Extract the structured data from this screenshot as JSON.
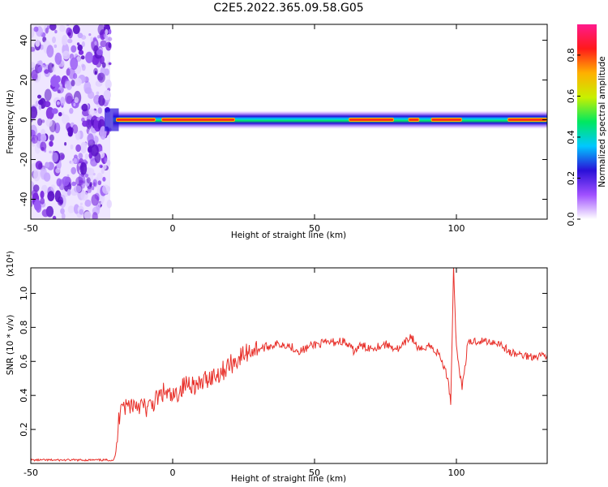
{
  "title": "C2E5.2022.365.09.58.G05",
  "colors": {
    "snr_line": "#e8302a",
    "frame": "#000000"
  },
  "chart_data": [
    {
      "type": "heatmap",
      "xlabel": "Height of straight line (km)",
      "ylabel": "Frequency (Hz)",
      "xlim": [
        -50,
        132
      ],
      "ylim": [
        -50,
        48
      ],
      "xticks": [
        "-50",
        "0",
        "50",
        "100"
      ],
      "yticks": [
        "40",
        "20",
        "0",
        "-20",
        "-40"
      ],
      "colorbar": {
        "label": "Normalized spectral amplitude",
        "range": [
          0,
          0.95
        ],
        "ticks": [
          "0.0",
          "0.2",
          "0.4",
          "0.6",
          "0.8"
        ],
        "stops": [
          "#ffffff",
          "#a050ff",
          "#2a10d8",
          "#00c8ff",
          "#00e860",
          "#c8f000",
          "#ffb000",
          "#ff1a1a",
          "#ff1a8c"
        ]
      },
      "noise_region_x": [
        -50,
        -22
      ],
      "signal_band": {
        "x_start": -21,
        "x_end": 132,
        "center_hz": 0,
        "peak_amplitude": 0.9
      },
      "peak_segments_x": [
        [
          -20,
          -6
        ],
        [
          -4,
          22
        ],
        [
          62,
          78
        ],
        [
          83,
          87
        ],
        [
          91,
          102
        ],
        [
          118,
          132
        ]
      ]
    },
    {
      "type": "line",
      "xlabel": "Height of straight line (km)",
      "ylabel": "SNR (10 * v/v)",
      "y_multiplier": "(x10⁴)",
      "xlim": [
        -50,
        132
      ],
      "ylim": [
        0,
        1.15
      ],
      "xticks": [
        "-50",
        "0",
        "50",
        "100"
      ],
      "yticks": [
        "0.2",
        "0.4",
        "0.6",
        "0.8",
        "1.0"
      ],
      "series": [
        {
          "x": [
            -50,
            -35,
            -25,
            -21,
            -20,
            -19,
            -18,
            -17,
            -15,
            -12,
            -9,
            -6,
            -3,
            0,
            3,
            6,
            9,
            12,
            15,
            18,
            20,
            22,
            25,
            28,
            32,
            36,
            40,
            45,
            50,
            55,
            60,
            64,
            66,
            70,
            75,
            80,
            84,
            87,
            90,
            94,
            97,
            98,
            99,
            100,
            102,
            104,
            106,
            110,
            115,
            119,
            122,
            126,
            132
          ],
          "values": [
            0.02,
            0.02,
            0.02,
            0.02,
            0.05,
            0.25,
            0.4,
            0.33,
            0.35,
            0.35,
            0.32,
            0.37,
            0.42,
            0.38,
            0.44,
            0.48,
            0.45,
            0.5,
            0.52,
            0.55,
            0.58,
            0.6,
            0.64,
            0.67,
            0.68,
            0.7,
            0.7,
            0.66,
            0.7,
            0.71,
            0.72,
            0.66,
            0.69,
            0.68,
            0.7,
            0.67,
            0.75,
            0.66,
            0.7,
            0.64,
            0.5,
            0.36,
            1.15,
            0.68,
            0.44,
            0.7,
            0.72,
            0.72,
            0.71,
            0.65,
            0.64,
            0.63,
            0.64
          ]
        }
      ]
    }
  ]
}
